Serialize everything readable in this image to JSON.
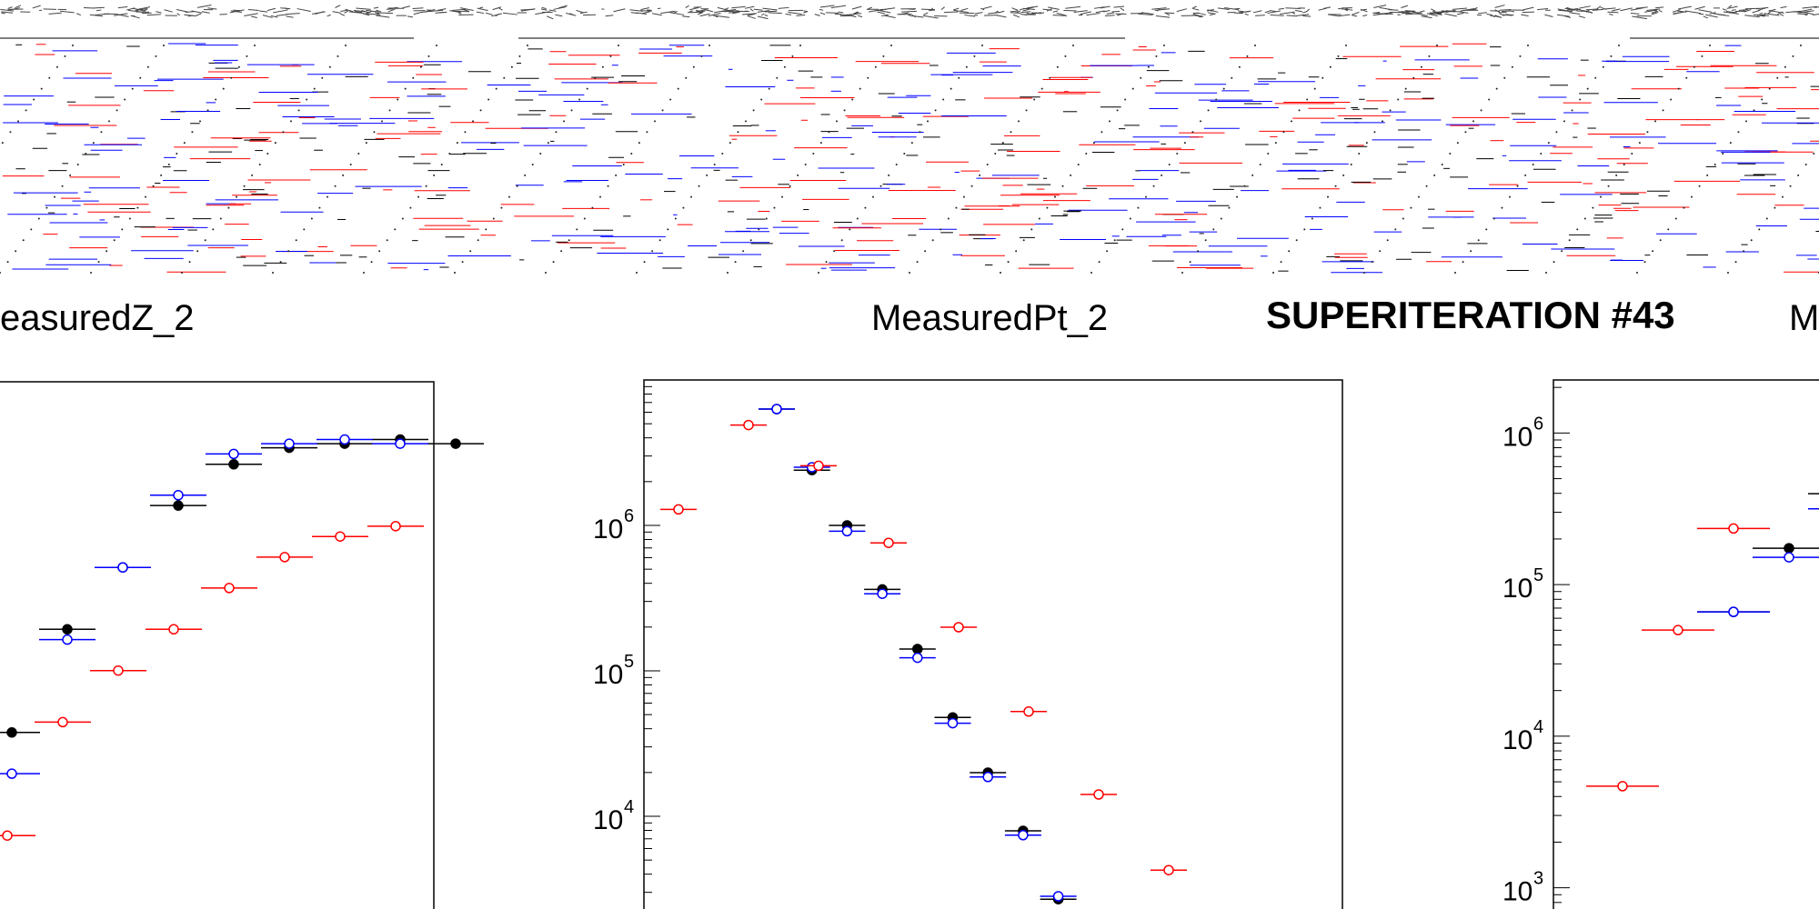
{
  "banner": "SUPERITERATION #43",
  "colors": {
    "black": "#000000",
    "red": "#ff0000",
    "blue": "#0000ff"
  },
  "chart_data": [
    {
      "type": "scatter",
      "title": "easuredZ_2",
      "log_y": true,
      "series": [
        {
          "values": [
            3.5,
            4.0,
            4.3,
            4.6,
            4.8,
            4.88,
            4.9,
            4.92,
            4.9
          ]
        },
        {
          "values": [
            3.3,
            3.95,
            4.3,
            4.65,
            4.85,
            4.9,
            4.92,
            4.9
          ]
        },
        {
          "values": [
            3.0,
            3.55,
            3.8,
            4.0,
            4.2,
            4.35,
            4.45,
            4.5
          ]
        }
      ]
    },
    {
      "type": "scatter",
      "title": "MeasuredPt_2",
      "log_y": true,
      "y_ticks": [
        {
          "base": "10",
          "exp": "6"
        },
        {
          "base": "10",
          "exp": "5"
        },
        {
          "base": "10",
          "exp": "4"
        }
      ],
      "series": [
        {
          "values": [
            6.8,
            6.38,
            6.0,
            5.56,
            5.15,
            4.68,
            4.3,
            3.9,
            3.43
          ]
        },
        {
          "values": [
            6.8,
            6.4,
            5.96,
            5.53,
            5.09,
            4.64,
            4.27,
            3.87,
            3.45
          ]
        },
        {
          "values": [
            6.11,
            6.69,
            6.41,
            5.88,
            5.3,
            4.72,
            4.15,
            3.63
          ]
        }
      ]
    },
    {
      "type": "scatter",
      "title": "M",
      "log_y": true,
      "y_ticks": [
        {
          "base": "10",
          "exp": "6"
        },
        {
          "base": "10",
          "exp": "5"
        },
        {
          "base": "10",
          "exp": "4"
        },
        {
          "base": "10",
          "exp": "3"
        }
      ],
      "series": [
        {
          "values": [
            4.82,
            5.24,
            5.6
          ]
        },
        {
          "values": [
            4.82,
            5.18,
            5.5
          ]
        },
        {
          "values": [
            3.67,
            4.7,
            5.37
          ]
        }
      ]
    }
  ]
}
